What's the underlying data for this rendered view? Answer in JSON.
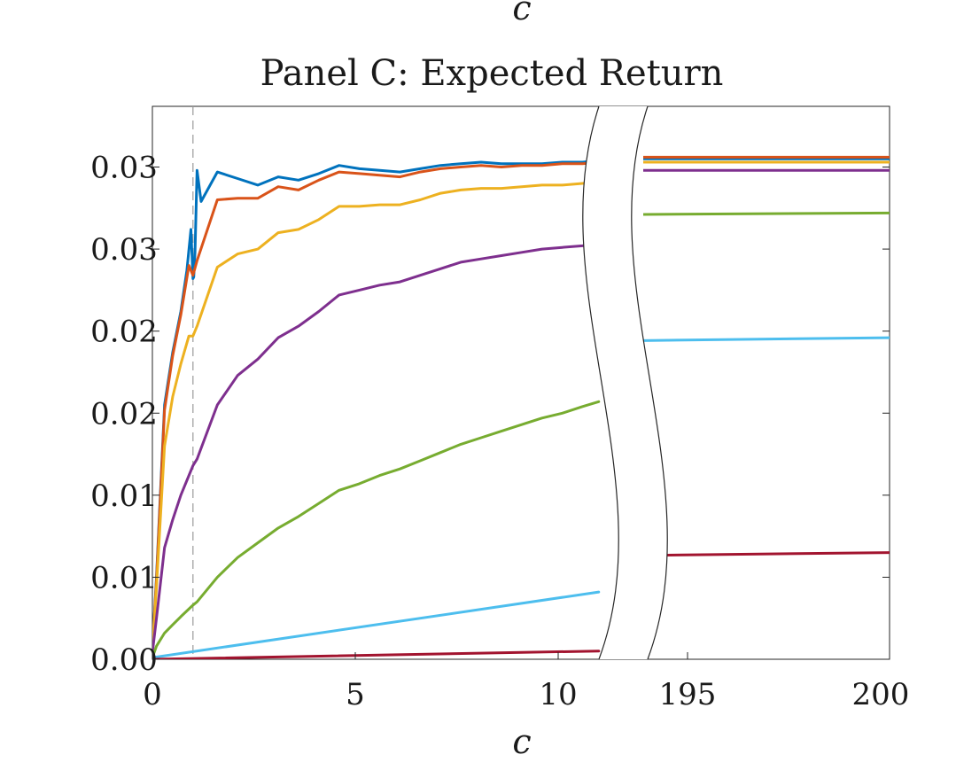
{
  "chart_data": {
    "type": "line",
    "title": "Panel C: Expected Return",
    "top_label": "c",
    "xlabel": "c",
    "ylabel": "",
    "axis_break": {
      "left_range": [
        0,
        11
      ],
      "right_range": [
        193,
        200
      ]
    },
    "xticks_left": [
      0,
      5,
      10
    ],
    "xticks_right": [
      195,
      200
    ],
    "xtick_labels_left": [
      "0",
      "5",
      "10"
    ],
    "xtick_labels_right": [
      "195",
      "200"
    ],
    "ytick_labels": [
      "0.00",
      "0.01",
      "0.01",
      "0.02",
      "0.02",
      "0.03",
      "0.03"
    ],
    "yticks": [
      0,
      0.005,
      0.01,
      0.015,
      0.02,
      0.025,
      0.03
    ],
    "ylim": [
      0,
      0.0337
    ],
    "vline_x": 1,
    "series": [
      {
        "color": "#0072BD",
        "x": [
          0,
          0.1,
          0.3,
          0.5,
          0.7,
          0.85,
          0.95,
          1.0,
          1.02,
          1.05,
          1.1,
          1.2,
          1.6,
          2.1,
          2.6,
          3.1,
          3.6,
          4.1,
          4.6,
          5.1,
          5.6,
          6.1,
          6.6,
          7.1,
          7.6,
          8.1,
          8.6,
          9.1,
          9.6,
          10.1,
          10.6,
          11.0
        ],
        "y": [
          0.0006,
          0.005,
          0.0155,
          0.0187,
          0.0212,
          0.0237,
          0.0262,
          0.0232,
          0.0233,
          0.0248,
          0.0298,
          0.0279,
          0.0297,
          0.0293,
          0.0289,
          0.0294,
          0.0292,
          0.0296,
          0.0301,
          0.0299,
          0.0298,
          0.0297,
          0.0299,
          0.0301,
          0.0302,
          0.0303,
          0.0302,
          0.0302,
          0.0302,
          0.0303,
          0.0303,
          0.0304
        ],
        "x_right": [
          193,
          200
        ],
        "y_right": [
          0.0305,
          0.0305
        ]
      },
      {
        "color": "#D95319",
        "x": [
          0,
          0.1,
          0.3,
          0.5,
          0.7,
          0.9,
          1.0,
          1.1,
          1.6,
          2.1,
          2.6,
          3.1,
          3.6,
          4.1,
          4.6,
          5.1,
          5.6,
          6.1,
          6.6,
          7.1,
          7.6,
          8.1,
          8.6,
          9.1,
          9.6,
          10.1,
          10.6,
          11.0
        ],
        "y": [
          0.0006,
          0.0048,
          0.0152,
          0.0185,
          0.021,
          0.024,
          0.0234,
          0.0243,
          0.028,
          0.0281,
          0.0281,
          0.0288,
          0.0286,
          0.0292,
          0.0297,
          0.0296,
          0.0295,
          0.0294,
          0.0297,
          0.0299,
          0.03,
          0.0301,
          0.03,
          0.0301,
          0.0301,
          0.0302,
          0.0302,
          0.0303
        ],
        "x_right": [
          193,
          200
        ],
        "y_right": [
          0.0306,
          0.0306
        ]
      },
      {
        "color": "#EDB120",
        "x": [
          0,
          0.1,
          0.3,
          0.5,
          0.7,
          0.9,
          1.0,
          1.1,
          1.6,
          2.1,
          2.6,
          3.1,
          3.6,
          4.1,
          4.6,
          5.1,
          5.6,
          6.1,
          6.6,
          7.1,
          7.6,
          8.1,
          8.6,
          9.1,
          9.6,
          10.1,
          10.6,
          11.0
        ],
        "y": [
          0.0005,
          0.0044,
          0.013,
          0.016,
          0.018,
          0.0197,
          0.0197,
          0.0203,
          0.0239,
          0.0247,
          0.025,
          0.026,
          0.0262,
          0.0268,
          0.0276,
          0.0276,
          0.0277,
          0.0277,
          0.028,
          0.0284,
          0.0286,
          0.0287,
          0.0287,
          0.0288,
          0.0289,
          0.0289,
          0.029,
          0.0291
        ],
        "x_right": [
          193,
          200
        ],
        "y_right": [
          0.0303,
          0.0303
        ]
      },
      {
        "color": "#7E2F8E",
        "x": [
          0,
          0.1,
          0.3,
          0.5,
          0.7,
          1.0,
          1.1,
          1.6,
          2.1,
          2.6,
          3.1,
          3.6,
          4.1,
          4.6,
          5.1,
          5.6,
          6.1,
          6.6,
          7.1,
          7.6,
          8.1,
          8.6,
          9.1,
          9.6,
          10.1,
          10.6,
          11.0
        ],
        "y": [
          0.0004,
          0.0025,
          0.0068,
          0.0085,
          0.01,
          0.0118,
          0.0122,
          0.0155,
          0.0173,
          0.0183,
          0.0196,
          0.0203,
          0.0212,
          0.0222,
          0.0225,
          0.0228,
          0.023,
          0.0234,
          0.0238,
          0.0242,
          0.0244,
          0.0246,
          0.0248,
          0.025,
          0.0251,
          0.0252,
          0.0254
        ],
        "x_right": [
          193,
          200
        ],
        "y_right": [
          0.0298,
          0.0298
        ]
      },
      {
        "color": "#77AC30",
        "x": [
          0,
          0.1,
          0.3,
          0.5,
          0.7,
          1.0,
          1.1,
          1.6,
          2.1,
          2.6,
          3.1,
          3.6,
          4.1,
          4.6,
          5.1,
          5.6,
          6.1,
          6.6,
          7.1,
          7.6,
          8.1,
          8.6,
          9.1,
          9.6,
          10.1,
          10.6,
          11.0
        ],
        "y": [
          0.0001,
          0.0008,
          0.0016,
          0.0021,
          0.0026,
          0.0033,
          0.0035,
          0.005,
          0.0062,
          0.0071,
          0.008,
          0.0087,
          0.0095,
          0.0103,
          0.0107,
          0.0112,
          0.0116,
          0.0121,
          0.0126,
          0.0131,
          0.0135,
          0.0139,
          0.0143,
          0.0147,
          0.015,
          0.0154,
          0.0157
        ],
        "x_right": [
          193,
          200
        ],
        "y_right": [
          0.0271,
          0.0272
        ]
      },
      {
        "color": "#4DBEEE",
        "x": [
          0,
          11.0
        ],
        "y": [
          0.0001,
          0.0041
        ],
        "x_right": [
          193,
          200
        ],
        "y_right": [
          0.0194,
          0.0196
        ]
      },
      {
        "color": "#A2142F",
        "x": [
          0,
          11.0
        ],
        "y": [
          0.0,
          0.0005
        ],
        "x_right": [
          193,
          200
        ],
        "y_right": [
          0.0063,
          0.0065
        ]
      }
    ]
  }
}
